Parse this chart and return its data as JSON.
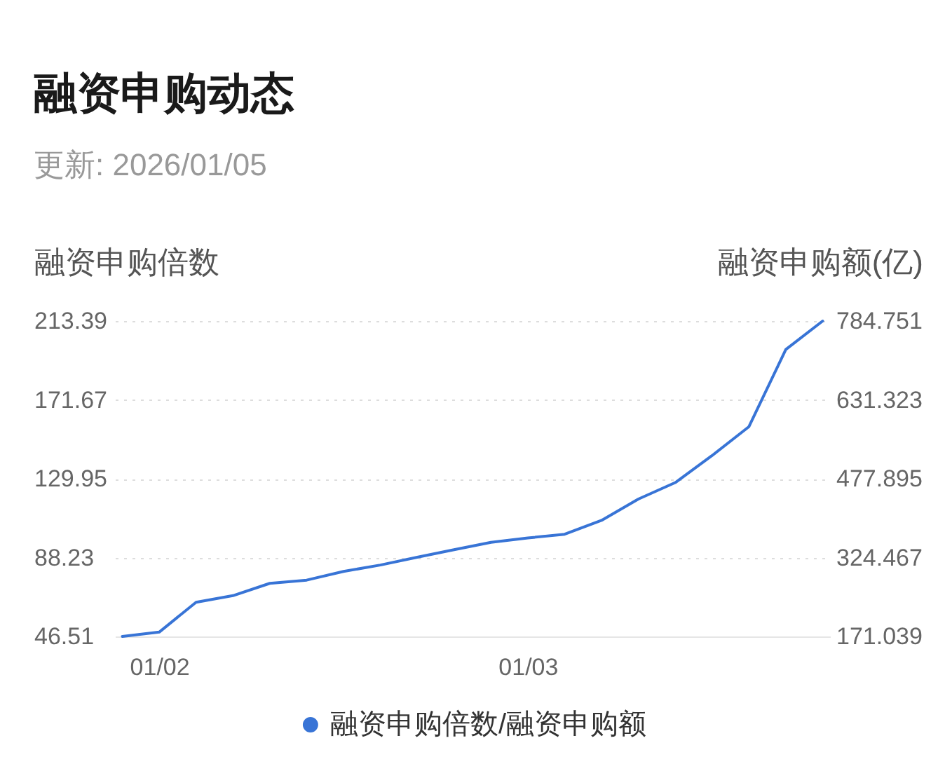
{
  "chart_data": {
    "type": "line",
    "title": "融资申购动态",
    "subtitle": "更新: 2026/01/05",
    "ylabel": "融资申购倍数",
    "y2label": "融资申购额(亿)",
    "categories": [
      null,
      "01/02",
      null,
      null,
      null,
      null,
      null,
      null,
      null,
      null,
      null,
      "01/03",
      null,
      null,
      null,
      null,
      null,
      null,
      null,
      null
    ],
    "series": [
      {
        "name": "融资申购倍数/融资申购额",
        "color": "#3874d6",
        "values": [
          46.51,
          48.8,
          64.6,
          68.1,
          74.6,
          76.3,
          80.9,
          84.3,
          88.4,
          92.4,
          96.3,
          98.6,
          100.6,
          107.9,
          119.2,
          127.9,
          142.2,
          157.5,
          198.3,
          213.39
        ]
      }
    ],
    "ylim": [
      46.51,
      213.39
    ],
    "yticks": [
      46.51,
      88.23,
      129.95,
      171.67,
      213.39
    ],
    "y2lim": [
      171.039,
      784.751
    ],
    "y2ticks": [
      171.039,
      324.467,
      477.895,
      631.323,
      784.751
    ],
    "grid": "y",
    "legend": "bottom"
  }
}
